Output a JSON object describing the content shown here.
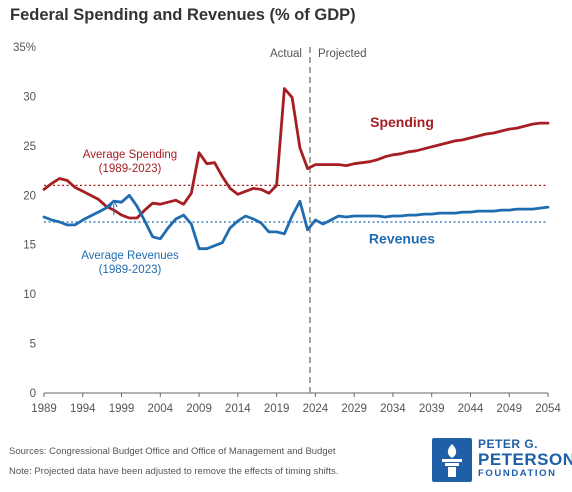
{
  "title": "Federal Spending and Revenues (% of GDP)",
  "footer": {
    "sources": "Sources: Congressional Budget Office and Office of Management and Budget",
    "note": "Note: Projected data have been adjusted to remove the effects of timing shifts."
  },
  "logo": {
    "line1": "PETER G.",
    "line2": "PETERSON",
    "line3": "FOUNDATION",
    "icon": "torch-icon"
  },
  "colors": {
    "spending": "#a51e22",
    "revenues": "#1f6cb0",
    "divider": "#999999",
    "axis": "#666666",
    "brand": "#1f5fa8"
  },
  "chart_data": {
    "type": "line",
    "title": "Federal Spending and Revenues (% of GDP)",
    "xlim": [
      1989,
      2054
    ],
    "ylim": [
      0,
      35
    ],
    "x_ticks": [
      1989,
      1994,
      1999,
      2004,
      2009,
      2014,
      2019,
      2024,
      2029,
      2034,
      2039,
      2044,
      2049,
      2054
    ],
    "y_ticks": [
      0,
      5,
      10,
      15,
      20,
      25,
      30,
      35
    ],
    "y_tick_labels": [
      "0",
      "5",
      "10",
      "15",
      "20",
      "25",
      "30",
      "35%"
    ],
    "grid": false,
    "x": [
      1989,
      1990,
      1991,
      1992,
      1993,
      1994,
      1995,
      1996,
      1997,
      1998,
      1999,
      2000,
      2001,
      2002,
      2003,
      2004,
      2005,
      2006,
      2007,
      2008,
      2009,
      2010,
      2011,
      2012,
      2013,
      2014,
      2015,
      2016,
      2017,
      2018,
      2019,
      2020,
      2021,
      2022,
      2023,
      2024,
      2025,
      2026,
      2027,
      2028,
      2029,
      2030,
      2031,
      2032,
      2033,
      2034,
      2035,
      2036,
      2037,
      2038,
      2039,
      2040,
      2041,
      2042,
      2043,
      2044,
      2045,
      2046,
      2047,
      2048,
      2049,
      2050,
      2051,
      2052,
      2053,
      2054
    ],
    "series": [
      {
        "name": "Spending",
        "values": [
          20.6,
          21.2,
          21.7,
          21.5,
          20.8,
          20.4,
          20.0,
          19.6,
          18.9,
          18.5,
          18.0,
          17.7,
          17.7,
          18.5,
          19.2,
          19.1,
          19.3,
          19.5,
          19.1,
          20.2,
          24.3,
          23.2,
          23.3,
          21.9,
          20.7,
          20.1,
          20.4,
          20.7,
          20.6,
          20.2,
          21.0,
          30.8,
          29.9,
          24.8,
          22.7,
          23.1,
          23.1,
          23.1,
          23.1,
          23.0,
          23.2,
          23.3,
          23.4,
          23.6,
          23.9,
          24.1,
          24.2,
          24.4,
          24.5,
          24.7,
          24.9,
          25.1,
          25.3,
          25.5,
          25.6,
          25.8,
          26.0,
          26.2,
          26.3,
          26.5,
          26.7,
          26.8,
          27.0,
          27.2,
          27.3,
          27.3
        ]
      },
      {
        "name": "Revenues",
        "values": [
          17.8,
          17.5,
          17.3,
          17.0,
          17.0,
          17.5,
          17.9,
          18.3,
          18.7,
          19.4,
          19.3,
          20.0,
          18.9,
          17.4,
          15.8,
          15.6,
          16.7,
          17.6,
          18.0,
          17.1,
          14.6,
          14.6,
          14.9,
          15.2,
          16.7,
          17.4,
          17.9,
          17.6,
          17.2,
          16.3,
          16.3,
          16.1,
          17.9,
          19.4,
          16.5,
          17.5,
          17.1,
          17.5,
          17.9,
          17.8,
          17.9,
          17.9,
          17.9,
          17.9,
          17.8,
          17.9,
          17.9,
          18.0,
          18.0,
          18.1,
          18.1,
          18.2,
          18.2,
          18.2,
          18.3,
          18.3,
          18.4,
          18.4,
          18.4,
          18.5,
          18.5,
          18.6,
          18.6,
          18.6,
          18.7,
          18.8
        ]
      }
    ],
    "reference_lines": [
      {
        "series": "Spending",
        "value": 21.0,
        "label_line1": "Average Spending",
        "label_line2": "(1989-2023)"
      },
      {
        "series": "Revenues",
        "value": 17.3,
        "label_line1": "Average Revenues",
        "label_line2": "(1989-2023)"
      }
    ],
    "divider": {
      "x": 2023.3,
      "left_label": "Actual",
      "right_label": "Projected"
    },
    "series_labels": {
      "spending": "Spending",
      "revenues": "Revenues"
    }
  }
}
